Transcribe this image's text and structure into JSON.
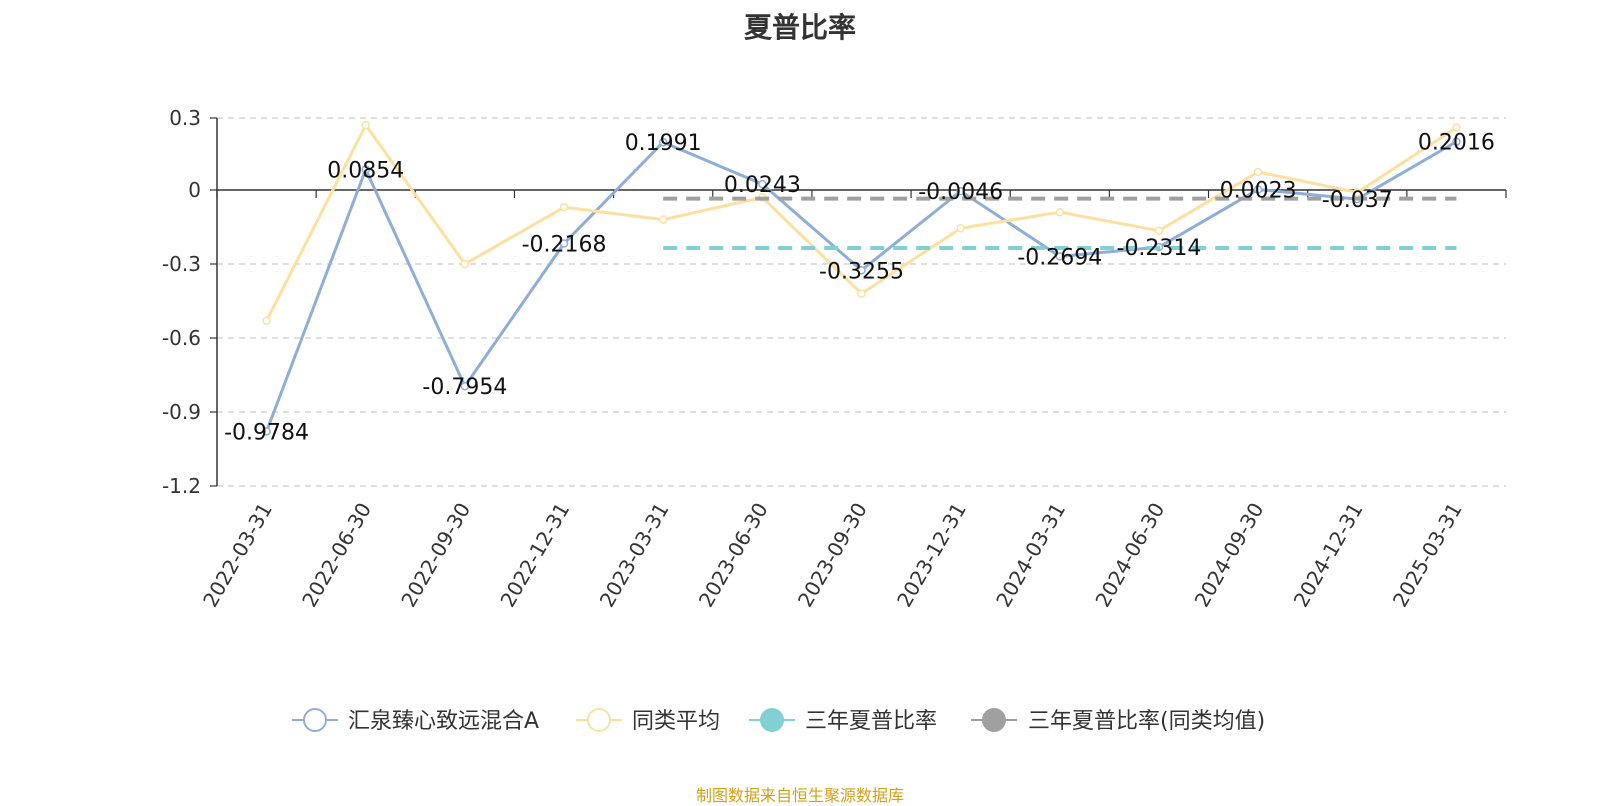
{
  "chart_data": {
    "type": "line",
    "title": "夏普比率",
    "categories": [
      "2022-03-31",
      "2022-06-30",
      "2022-09-30",
      "2022-12-31",
      "2023-03-31",
      "2023-06-30",
      "2023-09-30",
      "2023-12-31",
      "2024-03-31",
      "2024-06-30",
      "2024-09-30",
      "2024-12-31",
      "2025-03-31"
    ],
    "ylim": [
      -1.2,
      0.3
    ],
    "yticks": [
      "0.3",
      "0",
      "-0.3",
      "-0.6",
      "-0.9",
      "-1.2"
    ],
    "grid": true,
    "legend_position": "bottom",
    "series": [
      {
        "name": "汇泉臻心致远混合A",
        "color": "#8eaed8",
        "values": [
          -0.9784,
          0.0854,
          -0.7954,
          -0.2168,
          0.1991,
          0.0243,
          -0.3255,
          -0.0046,
          -0.2694,
          -0.2314,
          0.0023,
          -0.037,
          0.2016
        ],
        "labels": [
          "-0.9784",
          "0.0854",
          "-0.7954",
          "-0.2168",
          "0.1991",
          "0.0243",
          "-0.3255",
          "-0.0046",
          "-0.2694",
          "-0.2314",
          "0.0023",
          "-0.037",
          "0.2016"
        ]
      },
      {
        "name": "同类平均",
        "color": "#fde0a0",
        "values": [
          -0.53,
          0.27,
          -0.3,
          -0.07,
          -0.12,
          -0.03,
          -0.42,
          -0.155,
          -0.09,
          -0.165,
          0.075,
          -0.01,
          0.26
        ]
      },
      {
        "name": "三年夏普比率",
        "color": "#80d0d4",
        "dashed": true,
        "value": -0.235,
        "from_category": "2023-03-31",
        "to_category": "2025-03-31"
      },
      {
        "name": "三年夏普比率(同类均值)",
        "color": "#a0a0a0",
        "dashed": true,
        "value": -0.035,
        "from_category": "2023-03-31",
        "to_category": "2025-03-31"
      }
    ]
  },
  "footer": {
    "source": "制图数据来自恒生聚源数据库"
  }
}
